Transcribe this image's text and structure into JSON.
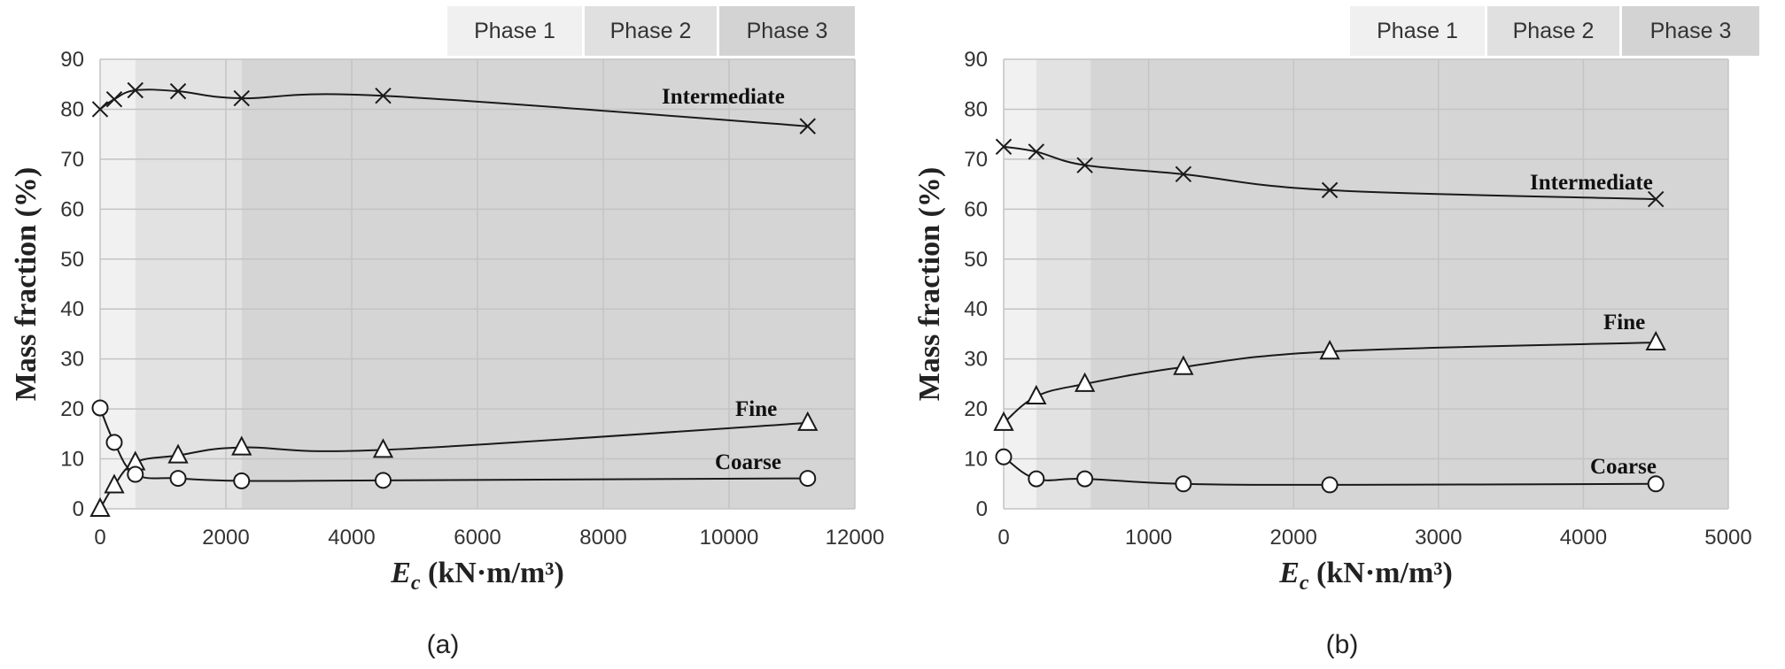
{
  "chart_data": [
    {
      "panel": "(a)",
      "type": "line",
      "xlabel_italic": "E",
      "xlabel_sub": "c",
      "xlabel_rest": " (kN·m/m³)",
      "ylabel": "Mass fraction (%)",
      "xlim": [
        0,
        12000
      ],
      "ylim": [
        0,
        90
      ],
      "xticks": [
        0,
        2000,
        4000,
        6000,
        8000,
        10000,
        12000
      ],
      "yticks": [
        0,
        10,
        20,
        30,
        40,
        50,
        60,
        70,
        80,
        90
      ],
      "grid": true,
      "phases": [
        {
          "label": "Phase 1",
          "start": 0,
          "end": 560,
          "color": "#f1f1f1"
        },
        {
          "label": "Phase 2",
          "start": 560,
          "end": 2250,
          "color": "#e2e2e2"
        },
        {
          "label": "Phase 3",
          "start": 2250,
          "end": 12000,
          "color": "#d5d5d5"
        }
      ],
      "series": [
        {
          "name": "Intermediate",
          "marker": "x",
          "x": [
            0,
            225,
            560,
            1240,
            2250,
            4500,
            11250
          ],
          "y": [
            80,
            82,
            83.8,
            83.6,
            82.2,
            82.7,
            76.6
          ]
        },
        {
          "name": "Fine",
          "marker": "triangle",
          "x": [
            0,
            225,
            560,
            1240,
            2250,
            4500,
            11250
          ],
          "y": [
            0,
            4.7,
            9.3,
            10.7,
            12.3,
            11.8,
            17.2
          ]
        },
        {
          "name": "Coarse",
          "marker": "circle",
          "x": [
            0,
            225,
            560,
            1240,
            2250,
            4500,
            11250
          ],
          "y": [
            20.2,
            13.3,
            6.9,
            6.1,
            5.6,
            5.7,
            6.1
          ]
        }
      ]
    },
    {
      "panel": "(b)",
      "type": "line",
      "xlabel_italic": "E",
      "xlabel_sub": "c",
      "xlabel_rest": " (kN·m/m³)",
      "ylabel": "Mass fraction (%)",
      "xlim": [
        0,
        5000
      ],
      "ylim": [
        0,
        90
      ],
      "xticks": [
        0,
        1000,
        2000,
        3000,
        4000,
        5000
      ],
      "yticks": [
        0,
        10,
        20,
        30,
        40,
        50,
        60,
        70,
        80,
        90
      ],
      "grid": true,
      "phases": [
        {
          "label": "Phase 1",
          "start": 0,
          "end": 225,
          "color": "#f1f1f1"
        },
        {
          "label": "Phase 2",
          "start": 225,
          "end": 600,
          "color": "#e2e2e2"
        },
        {
          "label": "Phase 3",
          "start": 600,
          "end": 5000,
          "color": "#d5d5d5"
        }
      ],
      "series": [
        {
          "name": "Intermediate",
          "marker": "x",
          "x": [
            0,
            225,
            560,
            1240,
            2250,
            4500
          ],
          "y": [
            72.5,
            71.5,
            68.8,
            67,
            63.8,
            62
          ]
        },
        {
          "name": "Fine",
          "marker": "triangle",
          "x": [
            0,
            225,
            560,
            1240,
            2250,
            4500
          ],
          "y": [
            17.2,
            22.5,
            25,
            28.4,
            31.5,
            33.3
          ]
        },
        {
          "name": "Coarse",
          "marker": "circle",
          "x": [
            0,
            225,
            560,
            1240,
            2250,
            4500
          ],
          "y": [
            10.4,
            6,
            6,
            5,
            4.8,
            5
          ]
        }
      ]
    }
  ]
}
